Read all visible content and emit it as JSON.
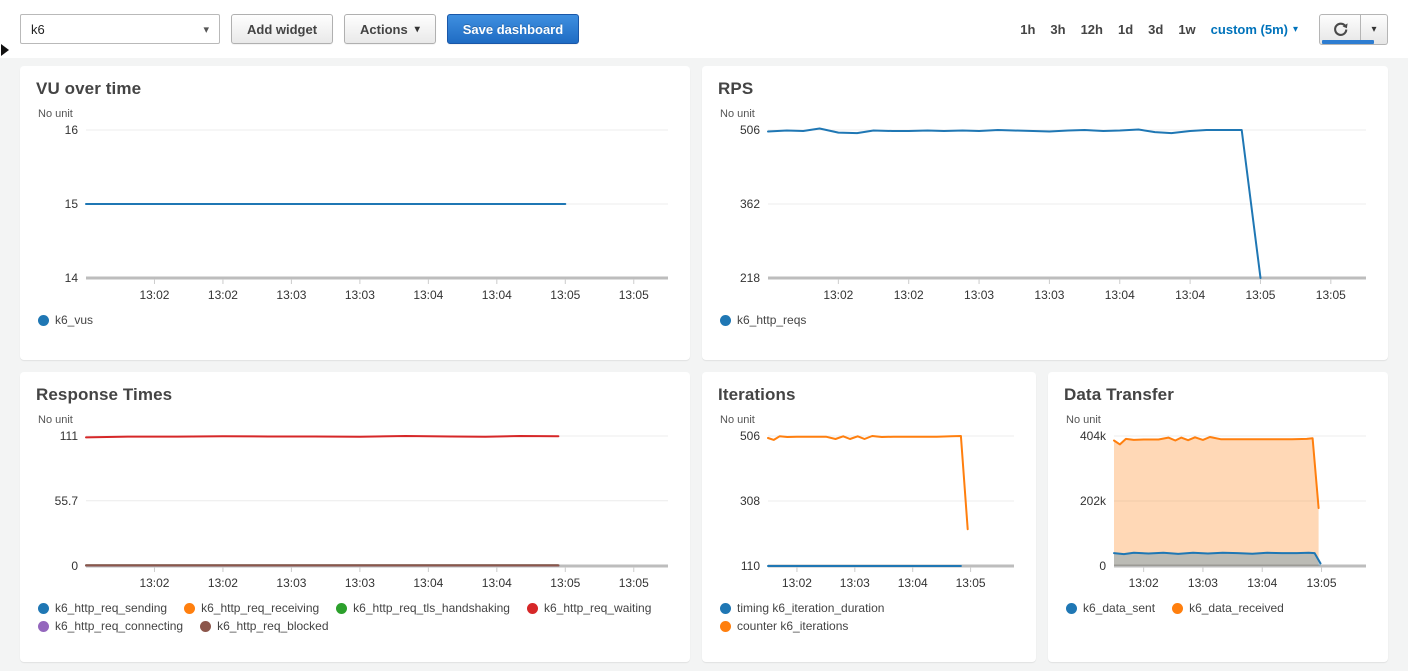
{
  "toolbar": {
    "dashboard_select": {
      "value": "k6"
    },
    "add_widget_label": "Add widget",
    "actions_label": "Actions",
    "save_label": "Save dashboard",
    "time_ranges": [
      "1h",
      "3h",
      "12h",
      "1d",
      "3d",
      "1w"
    ],
    "custom_range_label": "custom (5m)"
  },
  "icons": {
    "caret_down": "▾",
    "refresh": "circular-arrows",
    "sidebar_expand": "right-triangle"
  },
  "colors": {
    "series_blue": "#1f77b4",
    "series_orange": "#ff7f0e",
    "series_green": "#2ca02c",
    "series_red": "#d62728",
    "series_purple": "#9467bd",
    "series_brown": "#8c564b",
    "link_blue": "#0073bb",
    "primary_button": "#1f6cc4",
    "refresh_progress": "#2e7dd1"
  },
  "chart_data": [
    {
      "id": "vu-over-time",
      "type": "line",
      "title": "VU over time",
      "unit_label": "No unit",
      "xlim": [
        0,
        255
      ],
      "ylim": [
        14,
        16
      ],
      "grid": true,
      "legend_position": "bottom",
      "x_ticks": [
        {
          "t": 30,
          "label": "13:02"
        },
        {
          "t": 60,
          "label": "13:02"
        },
        {
          "t": 90,
          "label": "13:03"
        },
        {
          "t": 120,
          "label": "13:03"
        },
        {
          "t": 150,
          "label": "13:04"
        },
        {
          "t": 180,
          "label": "13:04"
        },
        {
          "t": 210,
          "label": "13:05"
        },
        {
          "t": 240,
          "label": "13:05"
        }
      ],
      "y_ticks": [
        {
          "v": 16,
          "label": "16"
        },
        {
          "v": 15,
          "label": "15"
        },
        {
          "v": 14,
          "label": "14"
        }
      ],
      "series": [
        {
          "name": "k6_vus",
          "color": "#1f77b4",
          "kind": "line",
          "points": [
            [
              0,
              15
            ],
            [
              210,
              15
            ]
          ]
        }
      ],
      "legend": [
        {
          "label": "k6_vus",
          "color": "#1f77b4"
        }
      ]
    },
    {
      "id": "rps",
      "type": "line",
      "title": "RPS",
      "unit_label": "No unit",
      "xlim": [
        0,
        255
      ],
      "ylim": [
        218,
        506
      ],
      "grid": true,
      "legend_position": "bottom",
      "x_ticks": [
        {
          "t": 30,
          "label": "13:02"
        },
        {
          "t": 60,
          "label": "13:02"
        },
        {
          "t": 90,
          "label": "13:03"
        },
        {
          "t": 120,
          "label": "13:03"
        },
        {
          "t": 150,
          "label": "13:04"
        },
        {
          "t": 180,
          "label": "13:04"
        },
        {
          "t": 210,
          "label": "13:05"
        },
        {
          "t": 240,
          "label": "13:05"
        }
      ],
      "y_ticks": [
        {
          "v": 506,
          "label": "506"
        },
        {
          "v": 362,
          "label": "362"
        },
        {
          "v": 218,
          "label": "218"
        }
      ],
      "series": [
        {
          "name": "k6_http_reqs",
          "color": "#1f77b4",
          "kind": "line",
          "points": [
            [
              0,
              503
            ],
            [
              8,
              505
            ],
            [
              15,
              504
            ],
            [
              22,
              509
            ],
            [
              30,
              501
            ],
            [
              38,
              500
            ],
            [
              45,
              505
            ],
            [
              53,
              504
            ],
            [
              60,
              504
            ],
            [
              68,
              505
            ],
            [
              75,
              504
            ],
            [
              83,
              505
            ],
            [
              90,
              504
            ],
            [
              98,
              506
            ],
            [
              105,
              505
            ],
            [
              113,
              504
            ],
            [
              120,
              503
            ],
            [
              128,
              505
            ],
            [
              135,
              506
            ],
            [
              143,
              504
            ],
            [
              150,
              505
            ],
            [
              158,
              507
            ],
            [
              165,
              502
            ],
            [
              172,
              500
            ],
            [
              180,
              504
            ],
            [
              187,
              506
            ],
            [
              195,
              506
            ],
            [
              202,
              506
            ],
            [
              210,
              218
            ]
          ]
        }
      ],
      "legend": [
        {
          "label": "k6_http_reqs",
          "color": "#1f77b4"
        }
      ]
    },
    {
      "id": "response-times",
      "type": "line",
      "title": "Response Times",
      "unit_label": "No unit",
      "xlim": [
        0,
        255
      ],
      "ylim": [
        0,
        111
      ],
      "grid": true,
      "legend_position": "bottom",
      "x_ticks": [
        {
          "t": 30,
          "label": "13:02"
        },
        {
          "t": 60,
          "label": "13:02"
        },
        {
          "t": 90,
          "label": "13:03"
        },
        {
          "t": 120,
          "label": "13:03"
        },
        {
          "t": 150,
          "label": "13:04"
        },
        {
          "t": 180,
          "label": "13:04"
        },
        {
          "t": 210,
          "label": "13:05"
        },
        {
          "t": 240,
          "label": "13:05"
        }
      ],
      "y_ticks": [
        {
          "v": 111,
          "label": "111"
        },
        {
          "v": 55.7,
          "label": "55.7"
        },
        {
          "v": 0,
          "label": "0"
        }
      ],
      "series": [
        {
          "name": "k6_http_req_sending",
          "color": "#1f77b4",
          "kind": "line",
          "points": [
            [
              0,
              0.5
            ],
            [
              207,
              0.5
            ]
          ]
        },
        {
          "name": "k6_http_req_receiving",
          "color": "#ff7f0e",
          "kind": "line",
          "points": [
            [
              0,
              0.5
            ],
            [
              207,
              0.5
            ]
          ]
        },
        {
          "name": "k6_http_req_tls_handshaking",
          "color": "#2ca02c",
          "kind": "line",
          "points": [
            [
              0,
              0.5
            ],
            [
              207,
              0.5
            ]
          ]
        },
        {
          "name": "k6_http_req_connecting",
          "color": "#9467bd",
          "kind": "line",
          "points": [
            [
              0,
              0.5
            ],
            [
              207,
              0.5
            ]
          ]
        },
        {
          "name": "k6_http_req_waiting",
          "color": "#d62728",
          "kind": "line",
          "points": [
            [
              0,
              109.8
            ],
            [
              20,
              110.5
            ],
            [
              40,
              110.5
            ],
            [
              60,
              110.8
            ],
            [
              80,
              110.6
            ],
            [
              100,
              110.6
            ],
            [
              120,
              110.3
            ],
            [
              140,
              111
            ],
            [
              160,
              110.6
            ],
            [
              175,
              110.3
            ],
            [
              190,
              111
            ],
            [
              207,
              110.8
            ]
          ]
        },
        {
          "name": "k6_http_req_blocked",
          "color": "#8c564b",
          "kind": "line",
          "points": [
            [
              0,
              0.5
            ],
            [
              207,
              0.5
            ]
          ]
        }
      ],
      "legend": [
        {
          "label": "k6_http_req_sending",
          "color": "#1f77b4"
        },
        {
          "label": "k6_http_req_receiving",
          "color": "#ff7f0e"
        },
        {
          "label": "k6_http_req_tls_handshaking",
          "color": "#2ca02c"
        },
        {
          "label": "k6_http_req_waiting",
          "color": "#d62728"
        },
        {
          "label": "k6_http_req_connecting",
          "color": "#9467bd"
        },
        {
          "label": "k6_http_req_blocked",
          "color": "#8c564b"
        }
      ]
    },
    {
      "id": "iterations",
      "type": "line",
      "title": "Iterations",
      "unit_label": "No unit",
      "xlim": [
        0,
        255
      ],
      "ylim": [
        110,
        506
      ],
      "grid": true,
      "legend_position": "bottom",
      "x_ticks": [
        {
          "t": 30,
          "label": "13:02"
        },
        {
          "t": 90,
          "label": "13:03"
        },
        {
          "t": 150,
          "label": "13:04"
        },
        {
          "t": 210,
          "label": "13:05"
        }
      ],
      "y_ticks": [
        {
          "v": 506,
          "label": "506"
        },
        {
          "v": 308,
          "label": "308"
        },
        {
          "v": 110,
          "label": "110"
        }
      ],
      "series": [
        {
          "name": "timing k6_iteration_duration",
          "color": "#1f77b4",
          "kind": "line",
          "points": [
            [
              0,
              110
            ],
            [
              200,
              110
            ]
          ]
        },
        {
          "name": "counter k6_iterations",
          "color": "#ff7f0e",
          "kind": "line",
          "points": [
            [
              0,
              500
            ],
            [
              6,
              494
            ],
            [
              12,
              505
            ],
            [
              20,
              503
            ],
            [
              30,
              504
            ],
            [
              45,
              504
            ],
            [
              60,
              504
            ],
            [
              70,
              497
            ],
            [
              78,
              505
            ],
            [
              85,
              497
            ],
            [
              93,
              505
            ],
            [
              100,
              497
            ],
            [
              108,
              506
            ],
            [
              118,
              503
            ],
            [
              130,
              504
            ],
            [
              145,
              504
            ],
            [
              160,
              504
            ],
            [
              175,
              504
            ],
            [
              190,
              505
            ],
            [
              200,
              506
            ],
            [
              207,
              222
            ]
          ]
        }
      ],
      "legend": [
        {
          "label": "timing k6_iteration_duration",
          "color": "#1f77b4"
        },
        {
          "label": "counter k6_iterations",
          "color": "#ff7f0e"
        }
      ]
    },
    {
      "id": "data-transfer",
      "type": "area",
      "title": "Data Transfer",
      "unit_label": "No unit",
      "xlim": [
        0,
        255
      ],
      "ylim": [
        0,
        404000
      ],
      "grid": true,
      "legend_position": "bottom",
      "x_ticks": [
        {
          "t": 30,
          "label": "13:02"
        },
        {
          "t": 90,
          "label": "13:03"
        },
        {
          "t": 150,
          "label": "13:04"
        },
        {
          "t": 210,
          "label": "13:05"
        }
      ],
      "y_ticks": [
        {
          "v": 404000,
          "label": "404k"
        },
        {
          "v": 202000,
          "label": "202k"
        },
        {
          "v": 0,
          "label": "0"
        }
      ],
      "series": [
        {
          "name": "k6_data_received",
          "color": "#ff7f0e",
          "kind": "area",
          "points": [
            [
              0,
              390000
            ],
            [
              6,
              378000
            ],
            [
              12,
              395000
            ],
            [
              20,
              392000
            ],
            [
              30,
              393000
            ],
            [
              45,
              393000
            ],
            [
              55,
              399000
            ],
            [
              62,
              390000
            ],
            [
              68,
              399000
            ],
            [
              75,
              391000
            ],
            [
              82,
              400000
            ],
            [
              90,
              392000
            ],
            [
              97,
              401000
            ],
            [
              108,
              394000
            ],
            [
              120,
              394000
            ],
            [
              135,
              394000
            ],
            [
              150,
              394000
            ],
            [
              165,
              394000
            ],
            [
              180,
              394000
            ],
            [
              195,
              395000
            ],
            [
              201,
              397000
            ],
            [
              207,
              180000
            ]
          ],
          "fill_opacity": 0.3
        },
        {
          "name": "k6_data_sent",
          "color": "#1f77b4",
          "kind": "area",
          "points": [
            [
              0,
              40000
            ],
            [
              10,
              37000
            ],
            [
              20,
              41000
            ],
            [
              35,
              39000
            ],
            [
              50,
              41000
            ],
            [
              65,
              37500
            ],
            [
              80,
              41000
            ],
            [
              95,
              39000
            ],
            [
              110,
              41000
            ],
            [
              125,
              40000
            ],
            [
              140,
              38000
            ],
            [
              155,
              41000
            ],
            [
              170,
              40000
            ],
            [
              185,
              40000
            ],
            [
              197,
              41000
            ],
            [
              203,
              40000
            ],
            [
              209,
              8000
            ]
          ],
          "fill_opacity": 0.3
        }
      ],
      "legend": [
        {
          "label": "k6_data_sent",
          "color": "#1f77b4"
        },
        {
          "label": "k6_data_received",
          "color": "#ff7f0e"
        }
      ]
    }
  ]
}
